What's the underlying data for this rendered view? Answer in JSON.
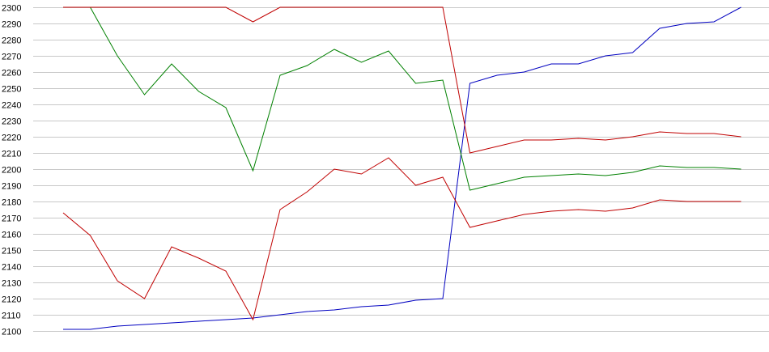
{
  "chart_data": {
    "type": "line",
    "title": "",
    "xlabel": "",
    "ylabel": "",
    "ylim": [
      2100,
      2300
    ],
    "yticks": [
      2100,
      2110,
      2120,
      2130,
      2140,
      2150,
      2160,
      2170,
      2180,
      2190,
      2200,
      2210,
      2220,
      2230,
      2240,
      2250,
      2260,
      2270,
      2280,
      2290,
      2300
    ],
    "grid": "horizontal",
    "legend": "none",
    "x": [
      1,
      2,
      3,
      4,
      5,
      6,
      7,
      8,
      9,
      10,
      11,
      12,
      13,
      14,
      15,
      16,
      17,
      18,
      19,
      20,
      21,
      22,
      23,
      24,
      25,
      26
    ],
    "series": [
      {
        "color": "#0000c0",
        "values": [
          2101,
          2101,
          2103,
          2104,
          2105,
          2106,
          2107,
          2108,
          2110,
          2112,
          2113,
          2115,
          2116,
          2119,
          2120,
          2253,
          2258,
          2260,
          2265,
          2265,
          2270,
          2272,
          2287,
          2290,
          2291,
          2300
        ]
      },
      {
        "color": "#008000",
        "values": [
          2300,
          2300,
          2270,
          2246,
          2265,
          2248,
          2238,
          2199,
          2258,
          2264,
          2274,
          2266,
          2273,
          2253,
          2255,
          2187,
          2191,
          2195,
          2196,
          2197,
          2196,
          2198,
          2202,
          2201,
          2201,
          2200
        ]
      },
      {
        "color": "#c00000",
        "values": [
          2300,
          2300,
          2300,
          2300,
          2300,
          2300,
          2300,
          2291,
          2300,
          2300,
          2300,
          2300,
          2300,
          2300,
          2300,
          2210,
          2214,
          2218,
          2218,
          2219,
          2218,
          2220,
          2223,
          2222,
          2222,
          2220
        ]
      },
      {
        "color": "#c00000",
        "values": [
          2173,
          2159,
          2131,
          2120,
          2152,
          2145,
          2137,
          2107,
          2175,
          2186,
          2200,
          2197,
          2207,
          2190,
          2195,
          2164,
          2168,
          2172,
          2174,
          2175,
          2174,
          2176,
          2181,
          2180,
          2180,
          2180
        ]
      }
    ]
  }
}
